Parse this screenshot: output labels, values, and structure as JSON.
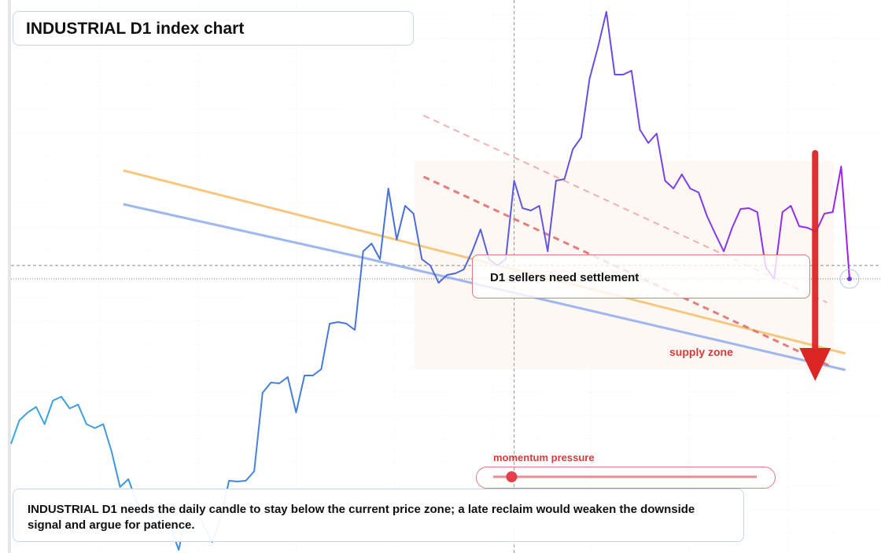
{
  "chart_data": {
    "type": "line",
    "title": "INDUSTRIAL D1 index chart",
    "caption": "INDUSTRIAL D1 needs the daily candle to stay below the current price zone; a late reclaim would weaken the downside signal and argue for patience.",
    "annotations": {
      "note": "D1 sellers need settlement",
      "zone": "supply zone",
      "slider_label": "momentum pressure"
    },
    "ylim": [
      0,
      704
    ],
    "xlim": [
      0,
      100
    ],
    "gradient": [
      "#3aa8e0",
      "#4a6ad8",
      "#a020f0"
    ],
    "series": [
      {
        "name": "INDUSTRIAL D1",
        "values": [
          139,
          169,
          179,
          186,
          164,
          194,
          199,
          184,
          189,
          164,
          159,
          164,
          129,
          84,
          94,
          64,
          54,
          44,
          54,
          34,
          4,
          54,
          64,
          34,
          14,
          44,
          92,
          91,
          92,
          104,
          204,
          217,
          216,
          224,
          179,
          226,
          226,
          234,
          292,
          294,
          292,
          284,
          384,
          394,
          374,
          464,
          399,
          442,
          432,
          374,
          366,
          344,
          354,
          356,
          361,
          384,
          412,
          374,
          366,
          374,
          474,
          439,
          436,
          442,
          384,
          474,
          476,
          514,
          529,
          604,
          644,
          689,
          609,
          609,
          614,
          539,
          522,
          534,
          474,
          464,
          482,
          464,
          459,
          429,
          406,
          384,
          414,
          438,
          439,
          434,
          364,
          349,
          434,
          442,
          416,
          414,
          409,
          432,
          434,
          492,
          349
        ]
      }
    ],
    "trend_lines": [
      {
        "name": "resistance",
        "color": "#f5c271",
        "x": [
          13.4,
          99.5
        ],
        "y": [
          487,
          254
        ]
      },
      {
        "name": "support",
        "color": "#95aeee",
        "x": [
          13.4,
          42.8,
          99.5
        ],
        "y": [
          444,
          374,
          233
        ]
      },
      {
        "name": "channel",
        "color": "#e07070",
        "dashed": true,
        "x": [
          49.2,
          97.5
        ],
        "y": [
          479,
          239
        ]
      },
      {
        "name": "channel-upper",
        "color": "#f0a8a8",
        "dashed": true,
        "x": [
          49.2,
          97.3
        ],
        "y": [
          557,
          319
        ]
      }
    ],
    "crosshair": {
      "x": 60,
      "y": 366
    },
    "last_price": 349,
    "zone": {
      "x": [
        48.1,
        98.1
      ],
      "y": [
        234,
        499
      ]
    },
    "arrow": {
      "color": "#dc2626",
      "from": 509,
      "to": 219,
      "x": 95.9
    },
    "slider": {
      "value": 7,
      "range": [
        0,
        100
      ]
    }
  }
}
